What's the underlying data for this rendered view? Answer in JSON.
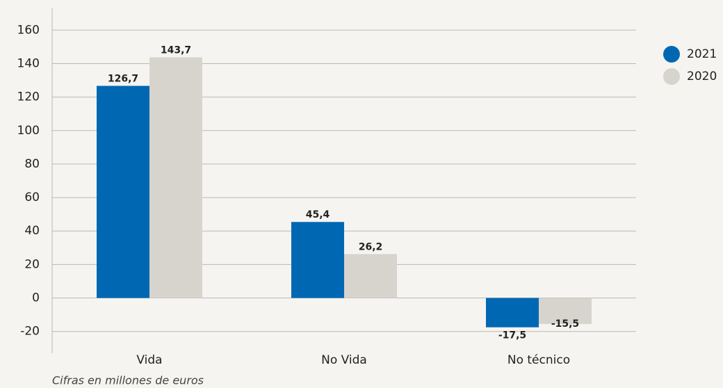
{
  "chart_data": {
    "type": "bar",
    "categories": [
      "Vida",
      "No Vida",
      "No técnico"
    ],
    "series": [
      {
        "name": "2021",
        "color": "#0068b3",
        "values": [
          126.7,
          45.4,
          -17.5
        ],
        "value_labels": [
          "126,7",
          "45,4",
          "-17,5"
        ]
      },
      {
        "name": "2020",
        "color": "#d7d4ce",
        "values": [
          143.7,
          26.2,
          -15.5
        ],
        "value_labels": [
          "143,7",
          "26,2",
          "-15,5"
        ]
      }
    ],
    "ylim": [
      -33,
      173
    ],
    "yticks": [
      -20,
      0,
      20,
      40,
      60,
      80,
      100,
      120,
      140,
      160
    ],
    "grid": true,
    "legend": "top-right",
    "annotation": "Cifras en millones de euros"
  }
}
